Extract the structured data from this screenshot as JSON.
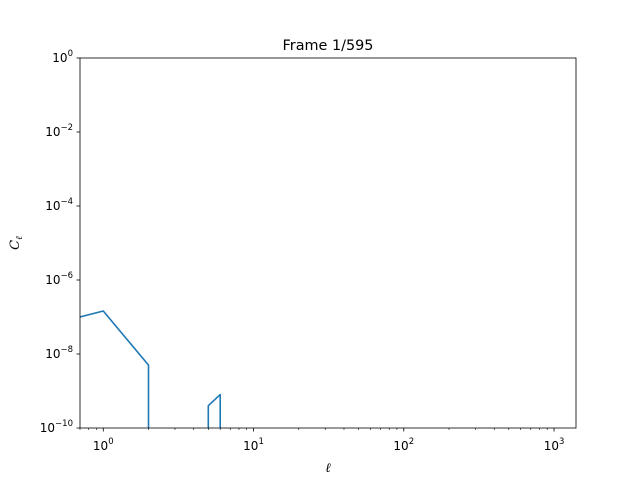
{
  "chart_data": {
    "type": "line",
    "title": "Frame 1/595",
    "xlabel": "ℓ",
    "ylabel": "C",
    "ylabel_sub": "ℓ",
    "xscale": "log",
    "yscale": "log",
    "xlim": [
      0.7,
      1400
    ],
    "ylim": [
      1e-10,
      1
    ],
    "grid": false,
    "line_color": "#1f77b4",
    "x_ticks": [
      {
        "value": 1,
        "base": "10",
        "exp": "0"
      },
      {
        "value": 10,
        "base": "10",
        "exp": "1"
      },
      {
        "value": 100,
        "base": "10",
        "exp": "2"
      },
      {
        "value": 1000,
        "base": "10",
        "exp": "3"
      }
    ],
    "y_ticks": [
      {
        "value": 1,
        "base": "10",
        "exp": "0"
      },
      {
        "value": 0.01,
        "base": "10",
        "exp": "−2"
      },
      {
        "value": 0.0001,
        "base": "10",
        "exp": "−4"
      },
      {
        "value": 1e-06,
        "base": "10",
        "exp": "−6"
      },
      {
        "value": 1e-08,
        "base": "10",
        "exp": "−8"
      },
      {
        "value": 1e-10,
        "base": "10",
        "exp": "−10"
      }
    ],
    "series": [
      {
        "segments": [
          [
            [
              0.7,
              1e-07
            ],
            [
              1,
              1.45e-07
            ],
            [
              2,
              5e-09
            ],
            [
              2,
              1e-10
            ]
          ],
          [
            [
              5,
              1e-10
            ],
            [
              5,
              4e-10
            ],
            [
              6,
              8e-10
            ],
            [
              6,
              1e-10
            ]
          ]
        ]
      }
    ]
  }
}
